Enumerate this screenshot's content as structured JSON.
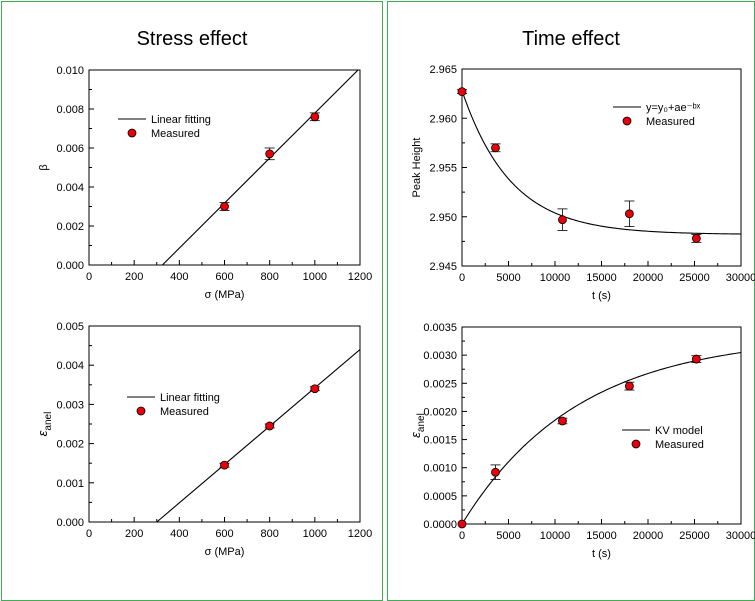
{
  "panels": {
    "left_title": "Stress effect",
    "right_title": "Time effect"
  },
  "colors": {
    "marker": "#e8000b",
    "line": "#000000",
    "frame": "#3fae55"
  },
  "chart_data": [
    {
      "id": "c1",
      "type": "scatter",
      "xlabel": "σ (MPa)",
      "ylabel": "β",
      "ylabel_sub": "",
      "xlim": [
        0,
        1200
      ],
      "ylim": [
        0,
        0.01
      ],
      "xticks": [
        0,
        200,
        400,
        600,
        800,
        1000,
        1200
      ],
      "yticks": [
        0,
        0.002,
        0.004,
        0.006,
        0.008,
        0.01
      ],
      "xtick_labels": [
        "0",
        "200",
        "400",
        "600",
        "800",
        "1000",
        "1200"
      ],
      "ytick_labels": [
        "0.000",
        "0.002",
        "0.004",
        "0.006",
        "0.008",
        "0.010"
      ],
      "legend_position": "top-left",
      "legend": {
        "line_label": "Linear fitting",
        "marker_label": "Measured"
      },
      "fit": {
        "kind": "linear",
        "x": [
          325,
          1200
        ],
        "y": [
          0,
          0.0101
        ]
      },
      "points": [
        {
          "x": 600,
          "y": 0.003,
          "err": 0.0002
        },
        {
          "x": 800,
          "y": 0.0057,
          "err": 0.0003
        },
        {
          "x": 1000,
          "y": 0.0076,
          "err": 0.0002
        }
      ]
    },
    {
      "id": "c2",
      "type": "scatter",
      "xlabel": "t (s)",
      "ylabel": "Peak Height",
      "ylabel_sub": "",
      "xlim": [
        0,
        30000
      ],
      "ylim": [
        2.945,
        2.965
      ],
      "xticks": [
        0,
        5000,
        10000,
        15000,
        20000,
        25000,
        30000
      ],
      "yticks": [
        2.945,
        2.95,
        2.955,
        2.96,
        2.965
      ],
      "xtick_labels": [
        "0",
        "5000",
        "10000",
        "15000",
        "20000",
        "25000",
        "30000"
      ],
      "ytick_labels": [
        "2.945",
        "2.950",
        "2.955",
        "2.960",
        "2.965"
      ],
      "legend_position": "top-right",
      "legend": {
        "line_label": "y=y₀+ae⁻ᵇˣ",
        "marker_label": "Measured"
      },
      "fit": {
        "kind": "exp_decay",
        "y0": 2.9482,
        "a": 0.0146,
        "b": 0.00019,
        "x_range": [
          0,
          30000
        ]
      },
      "points": [
        {
          "x": 0,
          "y": 2.9627,
          "err": 0.0002
        },
        {
          "x": 3600,
          "y": 2.957,
          "err": 0.0004
        },
        {
          "x": 10800,
          "y": 2.9497,
          "err": 0.0011
        },
        {
          "x": 18000,
          "y": 2.9503,
          "err": 0.0013
        },
        {
          "x": 25200,
          "y": 2.9478,
          "err": 0.0004
        }
      ]
    },
    {
      "id": "c3",
      "type": "scatter",
      "xlabel": "σ (MPa)",
      "ylabel": "ε",
      "ylabel_sub": "anel",
      "xlim": [
        0,
        1200
      ],
      "ylim": [
        0,
        0.005
      ],
      "xticks": [
        0,
        200,
        400,
        600,
        800,
        1000,
        1200
      ],
      "yticks": [
        0,
        0.001,
        0.002,
        0.003,
        0.004,
        0.005
      ],
      "xtick_labels": [
        "0",
        "200",
        "400",
        "600",
        "800",
        "1000",
        "1200"
      ],
      "ytick_labels": [
        "0.000",
        "0.001",
        "0.002",
        "0.003",
        "0.004",
        "0.005"
      ],
      "legend_position": "center-left",
      "legend": {
        "line_label": "Linear fitting",
        "marker_label": "Measured"
      },
      "fit": {
        "kind": "linear",
        "x": [
          300,
          1200
        ],
        "y": [
          0,
          0.0044
        ]
      },
      "points": [
        {
          "x": 600,
          "y": 0.00145,
          "err": 5e-05
        },
        {
          "x": 800,
          "y": 0.00245,
          "err": 5e-05
        },
        {
          "x": 1000,
          "y": 0.0034,
          "err": 5e-05
        }
      ]
    },
    {
      "id": "c4",
      "type": "scatter",
      "xlabel": "t (s)",
      "ylabel": "ε",
      "ylabel_sub": "anel",
      "xlim": [
        0,
        30000
      ],
      "ylim": [
        0,
        0.0035
      ],
      "xticks": [
        0,
        5000,
        10000,
        15000,
        20000,
        25000,
        30000
      ],
      "yticks": [
        0,
        0.0005,
        0.001,
        0.0015,
        0.002,
        0.0025,
        0.003,
        0.0035
      ],
      "xtick_labels": [
        "0",
        "5000",
        "10000",
        "15000",
        "20000",
        "25000",
        "30000"
      ],
      "ytick_labels": [
        "0.0000",
        "0.0005",
        "0.0010",
        "0.0015",
        "0.0020",
        "0.0025",
        "0.0030",
        "0.0035"
      ],
      "legend_position": "center-right",
      "legend": {
        "line_label": "KV model",
        "marker_label": "Measured"
      },
      "fit": {
        "kind": "kv",
        "a": 0.00335,
        "tau": 12500,
        "x_range": [
          0,
          30000
        ]
      },
      "points": [
        {
          "x": 0,
          "y": 0.0,
          "err": 0.0
        },
        {
          "x": 3600,
          "y": 0.00092,
          "err": 0.00013
        },
        {
          "x": 10800,
          "y": 0.00183,
          "err": 5e-05
        },
        {
          "x": 18000,
          "y": 0.00245,
          "err": 7e-05
        },
        {
          "x": 25200,
          "y": 0.00293,
          "err": 6e-05
        }
      ]
    }
  ]
}
